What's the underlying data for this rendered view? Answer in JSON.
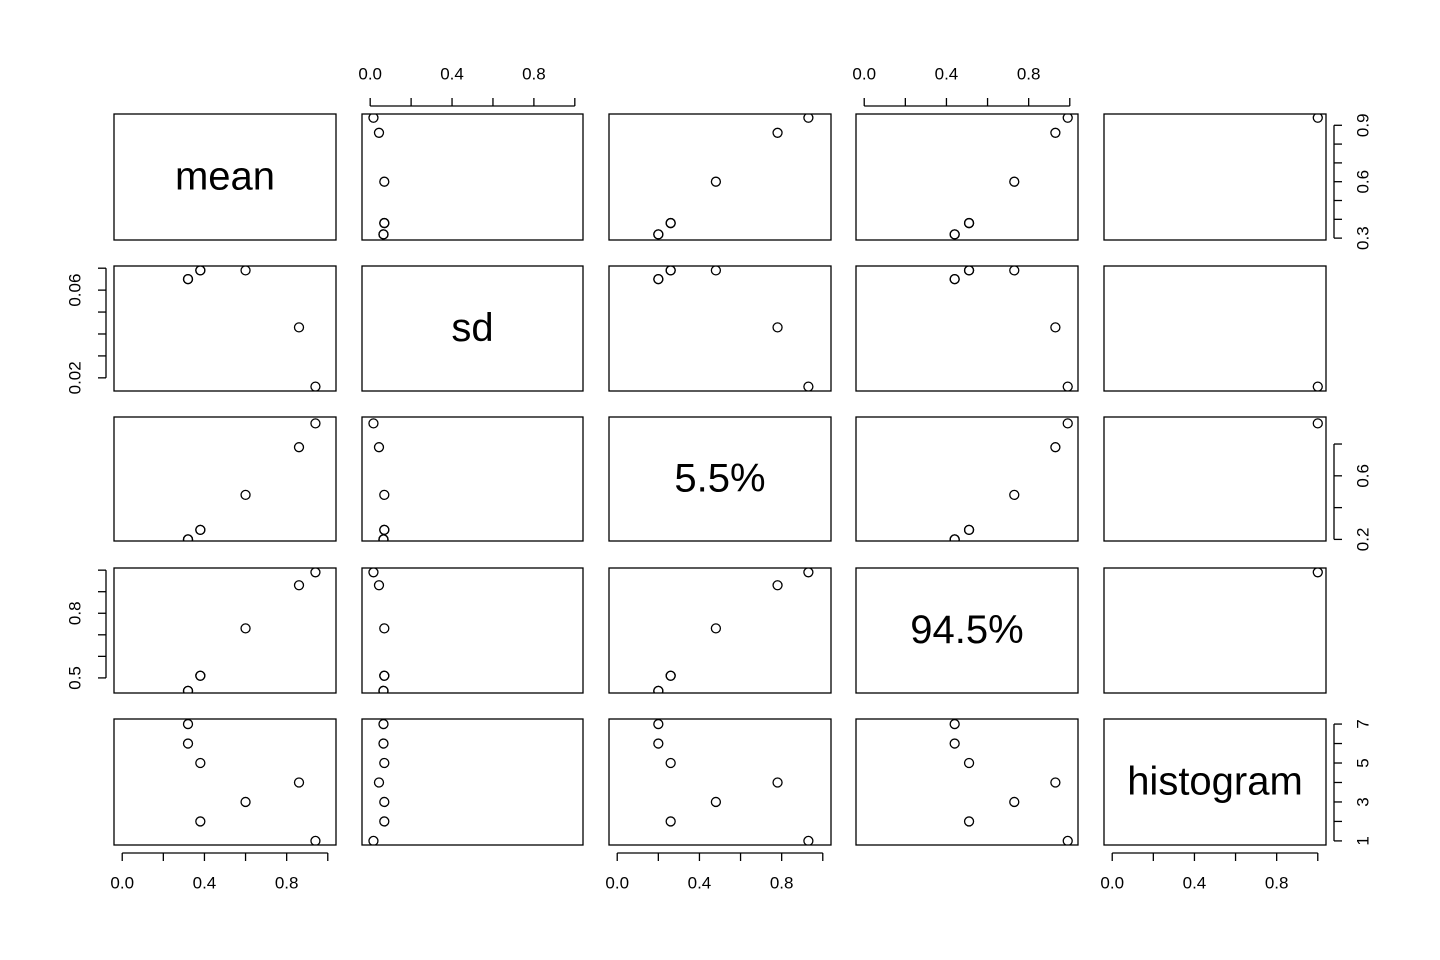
{
  "chart_data": {
    "type": "pairs",
    "xlim": [
      -0.04,
      1.04
    ],
    "xticks": [
      {
        "value": 0,
        "label": "0.0"
      },
      {
        "value": 0.2,
        "label": null
      },
      {
        "value": 0.4,
        "label": "0.4"
      },
      {
        "value": 0.6,
        "label": null
      },
      {
        "value": 0.8,
        "label": "0.8"
      },
      {
        "value": 1.0,
        "label": null
      }
    ],
    "variables": [
      {
        "name": "mean",
        "values": [
          0.94,
          0.38,
          0.6,
          0.86,
          0.38,
          0.32,
          0.32
        ],
        "ylim": [
          0.29,
          0.96
        ],
        "yticks": [
          {
            "value": 0.3,
            "label": "0.3"
          },
          {
            "value": 0.4,
            "label": null
          },
          {
            "value": 0.5,
            "label": null
          },
          {
            "value": 0.6,
            "label": "0.6"
          },
          {
            "value": 0.7,
            "label": null
          },
          {
            "value": 0.8,
            "label": null
          },
          {
            "value": 0.9,
            "label": "0.9"
          }
        ]
      },
      {
        "name": "sd",
        "values": [
          0.016,
          0.069,
          0.069,
          0.043,
          0.069,
          0.065,
          0.065
        ],
        "ylim": [
          0.014,
          0.071
        ],
        "yticks": [
          {
            "value": 0.02,
            "label": "0.02"
          },
          {
            "value": 0.03,
            "label": null
          },
          {
            "value": 0.04,
            "label": null
          },
          {
            "value": 0.05,
            "label": null
          },
          {
            "value": 0.06,
            "label": "0.06"
          },
          {
            "value": 0.07,
            "label": null
          }
        ]
      },
      {
        "name": "5.5%",
        "values": [
          0.93,
          0.26,
          0.48,
          0.78,
          0.26,
          0.2,
          0.2
        ],
        "ylim": [
          0.19,
          0.97
        ],
        "yticks": [
          {
            "value": 0.2,
            "label": "0.2"
          },
          {
            "value": 0.4,
            "label": null
          },
          {
            "value": 0.6,
            "label": "0.6"
          },
          {
            "value": 0.8,
            "label": null
          }
        ]
      },
      {
        "name": "94.5%",
        "values": [
          0.99,
          0.51,
          0.73,
          0.93,
          0.51,
          0.44,
          0.44
        ],
        "ylim": [
          0.43,
          1.01
        ],
        "yticks": [
          {
            "value": 0.5,
            "label": "0.5"
          },
          {
            "value": 0.6,
            "label": null
          },
          {
            "value": 0.7,
            "label": null
          },
          {
            "value": 0.8,
            "label": "0.8"
          },
          {
            "value": 0.9,
            "label": null
          },
          {
            "value": 1.0,
            "label": null
          }
        ]
      },
      {
        "name": "histogram",
        "values": [
          1,
          2,
          3,
          4,
          5,
          6,
          7
        ],
        "ylim": [
          0.79,
          7.26
        ],
        "yticks": [
          {
            "value": 1,
            "label": "1"
          },
          {
            "value": 2,
            "label": null
          },
          {
            "value": 3,
            "label": "3"
          },
          {
            "value": 4,
            "label": null
          },
          {
            "value": 5,
            "label": "5"
          },
          {
            "value": 6,
            "label": null
          },
          {
            "value": 7,
            "label": "7"
          }
        ]
      }
    ]
  }
}
